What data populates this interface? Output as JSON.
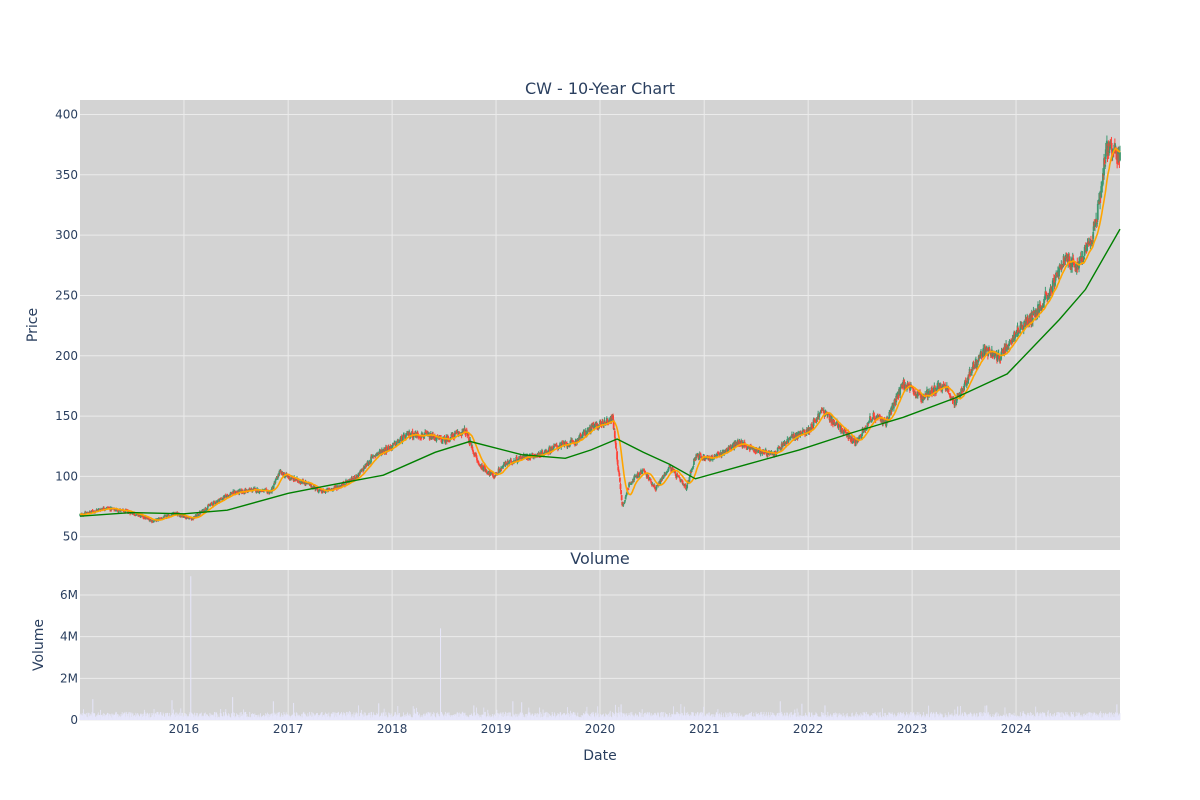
{
  "chart_data": [
    {
      "type": "candlestick",
      "title": "CW - 10-Year Chart",
      "ylabel": "Price",
      "xlabel": "",
      "xlim": [
        "2015-01-01",
        "2024-12-31"
      ],
      "ylim": [
        39,
        412
      ],
      "yticks": [
        50,
        100,
        150,
        200,
        250,
        300,
        350,
        400
      ],
      "grid": true,
      "colors": {
        "increasing": "#3d9970",
        "decreasing": "#ff4136",
        "ma_short": "#ffa500",
        "ma_long": "#008000",
        "plot_bg": "#d3d3d3",
        "grid": "#ebebeb"
      },
      "price_path": [
        [
          "2015-01-01",
          68
        ],
        [
          "2015-04-01",
          74
        ],
        [
          "2015-07-01",
          70
        ],
        [
          "2015-09-15",
          63
        ],
        [
          "2015-12-01",
          69
        ],
        [
          "2016-02-01",
          65
        ],
        [
          "2016-04-01",
          76
        ],
        [
          "2016-06-15",
          86
        ],
        [
          "2016-09-01",
          89
        ],
        [
          "2016-11-01",
          87
        ],
        [
          "2016-12-01",
          103
        ],
        [
          "2017-01-15",
          98
        ],
        [
          "2017-03-01",
          95
        ],
        [
          "2017-05-01",
          87
        ],
        [
          "2017-07-01",
          92
        ],
        [
          "2017-09-01",
          100
        ],
        [
          "2017-11-01",
          118
        ],
        [
          "2018-01-01",
          125
        ],
        [
          "2018-03-01",
          135
        ],
        [
          "2018-05-01",
          134
        ],
        [
          "2018-07-01",
          130
        ],
        [
          "2018-09-15",
          138
        ],
        [
          "2018-11-01",
          110
        ],
        [
          "2018-12-24",
          100
        ],
        [
          "2019-02-01",
          110
        ],
        [
          "2019-04-01",
          116
        ],
        [
          "2019-06-01",
          118
        ],
        [
          "2019-08-01",
          125
        ],
        [
          "2019-10-01",
          128
        ],
        [
          "2019-12-01",
          140
        ],
        [
          "2020-02-15",
          148
        ],
        [
          "2020-03-20",
          75
        ],
        [
          "2020-04-15",
          95
        ],
        [
          "2020-06-01",
          105
        ],
        [
          "2020-07-15",
          90
        ],
        [
          "2020-09-01",
          108
        ],
        [
          "2020-10-30",
          90
        ],
        [
          "2020-12-01",
          117
        ],
        [
          "2021-02-01",
          115
        ],
        [
          "2021-05-01",
          128
        ],
        [
          "2021-07-01",
          122
        ],
        [
          "2021-09-01",
          118
        ],
        [
          "2021-11-01",
          132
        ],
        [
          "2022-01-01",
          138
        ],
        [
          "2022-02-20",
          155
        ],
        [
          "2022-04-01",
          145
        ],
        [
          "2022-06-15",
          128
        ],
        [
          "2022-08-15",
          150
        ],
        [
          "2022-10-01",
          145
        ],
        [
          "2022-12-01",
          177
        ],
        [
          "2023-02-01",
          165
        ],
        [
          "2023-03-15",
          172
        ],
        [
          "2023-05-01",
          175
        ],
        [
          "2023-06-01",
          160
        ],
        [
          "2023-08-01",
          190
        ],
        [
          "2023-09-15",
          205
        ],
        [
          "2023-11-01",
          198
        ],
        [
          "2024-01-01",
          220
        ],
        [
          "2024-03-01",
          232
        ],
        [
          "2024-05-01",
          255
        ],
        [
          "2024-06-15",
          278
        ],
        [
          "2024-08-01",
          275
        ],
        [
          "2024-09-15",
          290
        ],
        [
          "2024-10-15",
          320
        ],
        [
          "2024-11-15",
          375
        ],
        [
          "2024-12-31",
          362
        ]
      ],
      "ma_long": [
        [
          "2015-01-01",
          67
        ],
        [
          "2015-07-01",
          70
        ],
        [
          "2016-01-01",
          69
        ],
        [
          "2016-06-01",
          72
        ],
        [
          "2017-01-01",
          86
        ],
        [
          "2017-06-01",
          93
        ],
        [
          "2017-12-01",
          101
        ],
        [
          "2018-06-01",
          120
        ],
        [
          "2018-10-01",
          129
        ],
        [
          "2019-04-01",
          118
        ],
        [
          "2019-09-01",
          115
        ],
        [
          "2019-12-01",
          122
        ],
        [
          "2020-03-01",
          131
        ],
        [
          "2020-06-01",
          120
        ],
        [
          "2020-09-01",
          110
        ],
        [
          "2020-12-01",
          98
        ],
        [
          "2021-06-01",
          110
        ],
        [
          "2021-12-01",
          122
        ],
        [
          "2022-06-01",
          136
        ],
        [
          "2022-12-01",
          149
        ],
        [
          "2023-06-01",
          165
        ],
        [
          "2023-12-01",
          185
        ],
        [
          "2024-06-01",
          230
        ],
        [
          "2024-09-01",
          255
        ],
        [
          "2024-12-31",
          305
        ]
      ],
      "ma_short_window_days": 50
    },
    {
      "type": "bar",
      "title": "Volume",
      "xlabel": "Date",
      "ylabel": "Volume",
      "ylim": [
        0,
        7200000
      ],
      "yticks": [
        0,
        2000000,
        4000000,
        6000000
      ],
      "ytick_labels": [
        "0",
        "2M",
        "4M",
        "6M"
      ],
      "xticks": [
        "2016",
        "2017",
        "2018",
        "2019",
        "2020",
        "2021",
        "2022",
        "2023",
        "2024"
      ],
      "bar_color": "#e6e6fa",
      "typical_volume": 300000,
      "spikes": [
        [
          "2015-02-15",
          1000000
        ],
        [
          "2015-11-20",
          950000
        ],
        [
          "2016-01-25",
          6900000
        ],
        [
          "2016-06-20",
          1100000
        ],
        [
          "2016-11-10",
          900000
        ],
        [
          "2017-01-20",
          820000
        ],
        [
          "2017-11-15",
          800000
        ],
        [
          "2018-06-20",
          4400000
        ],
        [
          "2018-10-15",
          700000
        ],
        [
          "2019-03-01",
          900000
        ],
        [
          "2019-04-01",
          850000
        ],
        [
          "2020-03-15",
          750000
        ],
        [
          "2021-09-25",
          900000
        ],
        [
          "2021-12-10",
          780000
        ],
        [
          "2022-03-01",
          700000
        ],
        [
          "2023-06-10",
          650000
        ],
        [
          "2023-09-20",
          700000
        ],
        [
          "2024-12-20",
          750000
        ]
      ]
    }
  ]
}
